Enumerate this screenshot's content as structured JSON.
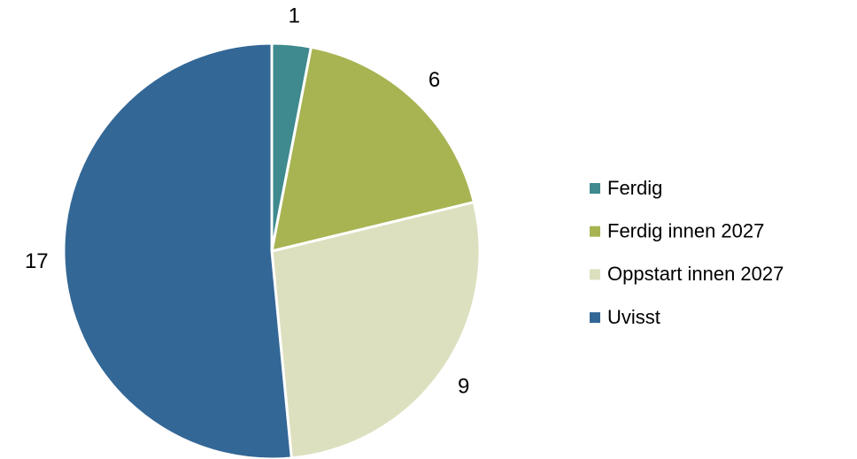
{
  "chart_data": {
    "type": "pie",
    "categories": [
      "Ferdig",
      "Ferdig innen 2027",
      "Oppstart innen 2027",
      "Uvisst"
    ],
    "values": [
      1,
      6,
      9,
      17
    ],
    "colors": [
      "#3e8a8e",
      "#a8b352",
      "#dce0bf",
      "#336796"
    ],
    "legend": "right"
  }
}
